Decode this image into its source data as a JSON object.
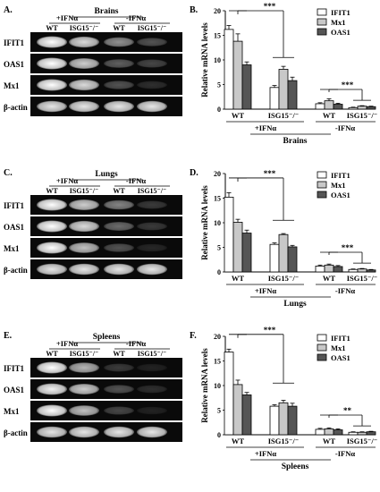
{
  "figure": {
    "gel_lane_labels": [
      "WT",
      "ISG15⁻/⁻",
      "WT",
      "ISG15⁻/⁻"
    ],
    "gel_treatment_labels": [
      "+IFNα",
      "-IFNα"
    ],
    "gene_labels": [
      "IFIT1",
      "OAS1",
      "Mx1",
      "β-actin"
    ],
    "legend": [
      "IFIT1",
      "Mx1",
      "OAS1"
    ],
    "bar_colors": [
      "#ffffff",
      "#c8c8c8",
      "#555555"
    ],
    "x_ticks": [
      "WT",
      "ISG15⁻/⁻",
      "WT",
      "ISG15⁻/⁻"
    ],
    "x_groups": [
      "+IFNα",
      "-IFNα"
    ],
    "y_label": "Relative mRNA levels",
    "panels": [
      {
        "gel_letter": "A.",
        "chart_letter": "B.",
        "tissue": "Brains",
        "band_intensity": [
          [
            1.0,
            0.85,
            0.55,
            0.3
          ],
          [
            1.0,
            0.8,
            0.35,
            0.25
          ],
          [
            1.0,
            0.85,
            0.3,
            0.15
          ],
          [
            0.9,
            0.9,
            0.9,
            0.9
          ]
        ],
        "sig_upper": "***",
        "sig_lower": "***"
      },
      {
        "gel_letter": "C.",
        "chart_letter": "D.",
        "tissue": "Lungs",
        "band_intensity": [
          [
            1.0,
            0.8,
            0.5,
            0.2
          ],
          [
            1.0,
            0.85,
            0.4,
            0.2
          ],
          [
            1.0,
            0.75,
            0.3,
            0.12
          ],
          [
            0.9,
            0.9,
            0.9,
            0.9
          ]
        ],
        "sig_upper": "***",
        "sig_lower": "***"
      },
      {
        "gel_letter": "E.",
        "chart_letter": "F.",
        "tissue": "Spleens",
        "band_intensity": [
          [
            1.0,
            0.7,
            0.2,
            0.1
          ],
          [
            0.95,
            0.8,
            0.3,
            0.15
          ],
          [
            1.0,
            0.75,
            0.25,
            0.1
          ],
          [
            0.9,
            0.9,
            0.9,
            0.9
          ]
        ],
        "sig_upper": "***",
        "sig_lower": "**"
      }
    ]
  },
  "chart_data": [
    {
      "type": "bar",
      "title": "Brains",
      "ylabel": "Relative mRNA levels",
      "ylim": [
        0,
        20
      ],
      "yticks": [
        0,
        5,
        10,
        15,
        20
      ],
      "categories": [
        "WT +IFNα",
        "ISG15⁻/⁻ +IFNα",
        "WT -IFNα",
        "ISG15⁻/⁻ -IFNα"
      ],
      "series": [
        {
          "name": "IFIT1",
          "values": [
            16.2,
            4.4,
            1.1,
            0.3
          ],
          "errors": [
            0.8,
            0.4,
            0.2,
            0.1
          ]
        },
        {
          "name": "Mx1",
          "values": [
            13.8,
            8.1,
            1.7,
            0.6
          ],
          "errors": [
            1.5,
            0.6,
            0.4,
            0.1
          ]
        },
        {
          "name": "OAS1",
          "values": [
            9.0,
            5.8,
            1.0,
            0.5
          ],
          "errors": [
            0.6,
            0.7,
            0.2,
            0.1
          ]
        }
      ]
    },
    {
      "type": "bar",
      "title": "Lungs",
      "ylabel": "Relative mRNA levels",
      "ylim": [
        0,
        20
      ],
      "yticks": [
        0,
        5,
        10,
        15,
        20
      ],
      "categories": [
        "WT +IFNα",
        "ISG15⁻/⁻ +IFNα",
        "WT -IFNα",
        "ISG15⁻/⁻ -IFNα"
      ],
      "series": [
        {
          "name": "IFIT1",
          "values": [
            15.2,
            5.6,
            1.2,
            0.5
          ],
          "errors": [
            0.9,
            0.3,
            0.2,
            0.1
          ]
        },
        {
          "name": "Mx1",
          "values": [
            10.1,
            7.6,
            1.4,
            0.6
          ],
          "errors": [
            0.6,
            0.2,
            0.2,
            0.1
          ]
        },
        {
          "name": "OAS1",
          "values": [
            7.9,
            5.1,
            1.1,
            0.4
          ],
          "errors": [
            0.6,
            0.3,
            0.2,
            0.1
          ]
        }
      ]
    },
    {
      "type": "bar",
      "title": "Spleens",
      "ylabel": "Relative mRNA levels",
      "ylim": [
        0,
        20
      ],
      "yticks": [
        0,
        5,
        10,
        15,
        20
      ],
      "categories": [
        "WT +IFNα",
        "ISG15⁻/⁻ +IFNα",
        "WT -IFNα",
        "ISG15⁻/⁻ -IFNα"
      ],
      "series": [
        {
          "name": "IFIT1",
          "values": [
            16.8,
            5.8,
            1.1,
            0.5
          ],
          "errors": [
            0.6,
            0.3,
            0.2,
            0.1
          ]
        },
        {
          "name": "Mx1",
          "values": [
            10.2,
            6.5,
            1.2,
            0.5
          ],
          "errors": [
            0.9,
            0.5,
            0.2,
            0.1
          ]
        },
        {
          "name": "OAS1",
          "values": [
            8.1,
            5.8,
            1.0,
            0.6
          ],
          "errors": [
            0.5,
            0.6,
            0.2,
            0.1
          ]
        }
      ]
    }
  ]
}
